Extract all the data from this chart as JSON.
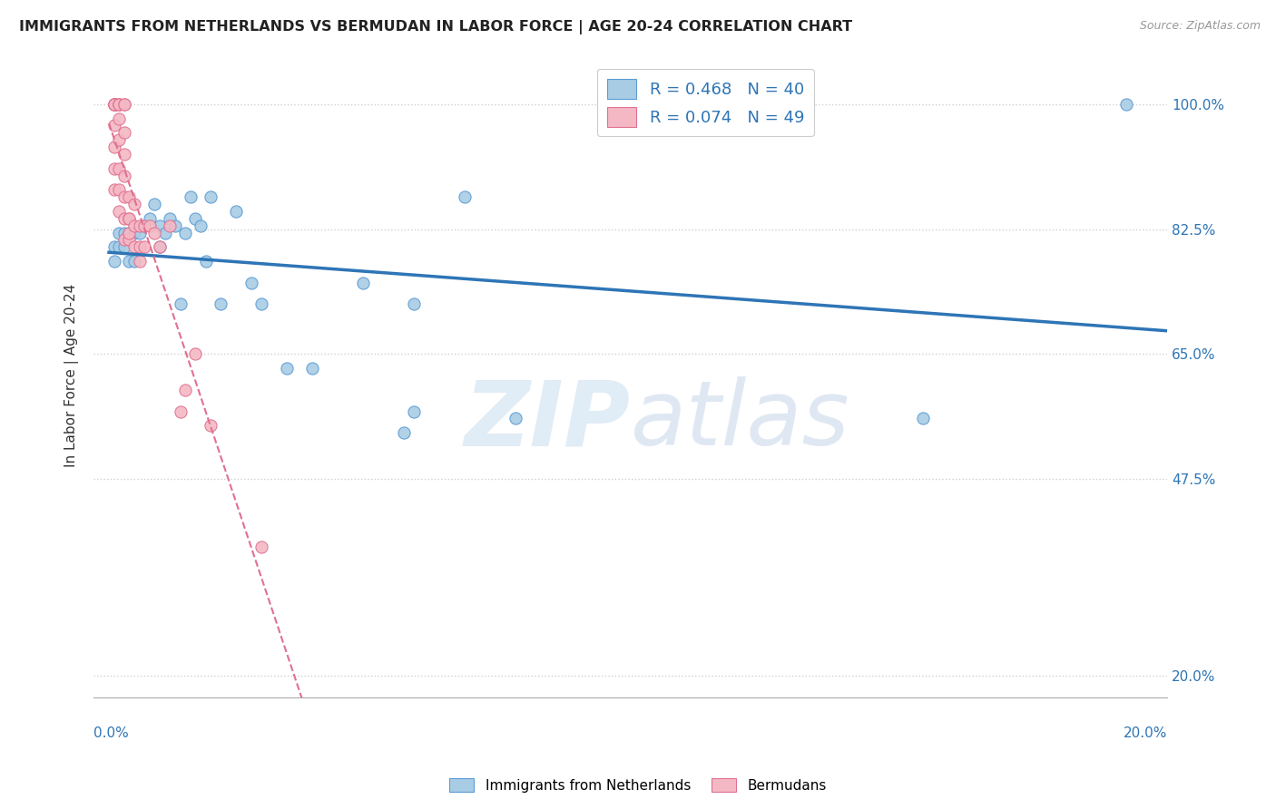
{
  "title": "IMMIGRANTS FROM NETHERLANDS VS BERMUDAN IN LABOR FORCE | AGE 20-24 CORRELATION CHART",
  "source": "Source: ZipAtlas.com",
  "ylabel": "In Labor Force | Age 20-24",
  "ytick_labels": [
    "100.0%",
    "82.5%",
    "65.0%",
    "47.5%",
    "20.0%"
  ],
  "ytick_values": [
    1.0,
    0.825,
    0.65,
    0.475,
    0.2
  ],
  "legend_blue_label": "R = 0.468   N = 40",
  "legend_pink_label": "R = 0.074   N = 49",
  "legend_bottom_blue": "Immigrants from Netherlands",
  "legend_bottom_pink": "Bermudans",
  "blue_color": "#a8cce4",
  "blue_edge_color": "#5b9bd5",
  "blue_line_color": "#2e75b6",
  "pink_color": "#f4b8c4",
  "pink_edge_color": "#e07090",
  "pink_line_color": "#e07090",
  "blue_scatter_x": [
    0.001,
    0.001,
    0.002,
    0.002,
    0.003,
    0.003,
    0.004,
    0.004,
    0.005,
    0.005,
    0.006,
    0.007,
    0.008,
    0.009,
    0.01,
    0.01,
    0.011,
    0.012,
    0.013,
    0.014,
    0.015,
    0.016,
    0.017,
    0.018,
    0.019,
    0.02,
    0.022,
    0.025,
    0.028,
    0.03,
    0.035,
    0.04,
    0.05,
    0.058,
    0.06,
    0.06,
    0.07,
    0.08,
    0.16,
    0.2
  ],
  "blue_scatter_y": [
    0.8,
    0.78,
    0.82,
    0.8,
    0.82,
    0.8,
    0.78,
    0.82,
    0.82,
    0.78,
    0.82,
    0.83,
    0.84,
    0.86,
    0.83,
    0.8,
    0.82,
    0.84,
    0.83,
    0.72,
    0.82,
    0.87,
    0.84,
    0.83,
    0.78,
    0.87,
    0.72,
    0.85,
    0.75,
    0.72,
    0.63,
    0.63,
    0.75,
    0.54,
    0.72,
    0.57,
    0.87,
    0.56,
    0.56,
    1.0
  ],
  "pink_scatter_x": [
    0.001,
    0.001,
    0.001,
    0.001,
    0.001,
    0.001,
    0.001,
    0.001,
    0.001,
    0.001,
    0.001,
    0.002,
    0.002,
    0.002,
    0.002,
    0.002,
    0.002,
    0.002,
    0.002,
    0.003,
    0.003,
    0.003,
    0.003,
    0.003,
    0.003,
    0.003,
    0.003,
    0.004,
    0.004,
    0.004,
    0.004,
    0.004,
    0.005,
    0.005,
    0.005,
    0.006,
    0.006,
    0.006,
    0.007,
    0.007,
    0.008,
    0.009,
    0.01,
    0.012,
    0.014,
    0.015,
    0.017,
    0.02,
    0.03
  ],
  "pink_scatter_y": [
    1.0,
    1.0,
    1.0,
    1.0,
    1.0,
    1.0,
    1.0,
    0.97,
    0.94,
    0.91,
    0.88,
    1.0,
    1.0,
    1.0,
    0.98,
    0.95,
    0.91,
    0.88,
    0.85,
    1.0,
    1.0,
    0.96,
    0.93,
    0.9,
    0.87,
    0.84,
    0.81,
    0.87,
    0.84,
    0.81,
    0.84,
    0.82,
    0.86,
    0.83,
    0.8,
    0.83,
    0.8,
    0.78,
    0.83,
    0.8,
    0.83,
    0.82,
    0.8,
    0.83,
    0.57,
    0.6,
    0.65,
    0.55,
    0.38
  ],
  "watermark_zip": "ZIP",
  "watermark_atlas": "atlas",
  "background_color": "#ffffff",
  "grid_color": "#d0d0d0",
  "xlim": [
    -0.003,
    0.208
  ],
  "ylim": [
    0.17,
    1.07
  ]
}
